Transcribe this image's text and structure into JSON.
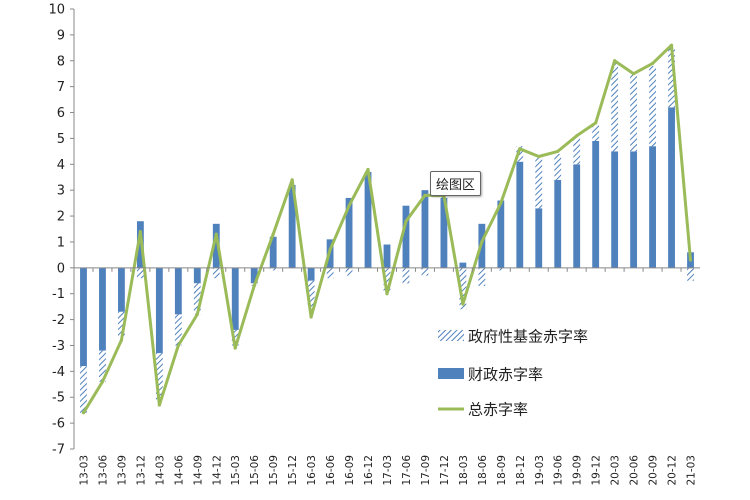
{
  "chart_data": {
    "type": "bar",
    "title": "",
    "xlabel": "",
    "ylabel": "",
    "ylim": [
      -7,
      10
    ],
    "yticks": [
      -7,
      -6,
      -5,
      -4,
      -3,
      -2,
      -1,
      0,
      1,
      2,
      3,
      4,
      5,
      6,
      7,
      8,
      9,
      10
    ],
    "grid": false,
    "legend_position": "lower-right",
    "categories": [
      "13-03",
      "13-06",
      "13-09",
      "13-12",
      "14-03",
      "14-06",
      "14-09",
      "14-12",
      "15-03",
      "15-06",
      "15-09",
      "15-12",
      "16-03",
      "16-06",
      "16-09",
      "16-12",
      "17-03",
      "17-06",
      "17-09",
      "17-12",
      "18-03",
      "18-06",
      "18-09",
      "18-12",
      "19-03",
      "19-06",
      "19-09",
      "19-12",
      "20-03",
      "20-06",
      "20-09",
      "20-12",
      "21-03"
    ],
    "series": [
      {
        "name": "政府性基金赤字率",
        "kind": "stacked-bar-hatched",
        "color": "#4f81bd",
        "values": [
          -1.8,
          -1.2,
          -1.0,
          -0.4,
          -1.9,
          -1.2,
          -1.2,
          -0.4,
          -0.6,
          -0.1,
          -0.1,
          0.1,
          -1.0,
          -0.4,
          -0.3,
          0.1,
          -1.0,
          -0.6,
          -0.3,
          0.1,
          -1.6,
          -0.7,
          -0.1,
          0.6,
          2.0,
          1.0,
          1.1,
          0.6,
          3.4,
          3.0,
          3.1,
          2.3,
          -0.5
        ]
      },
      {
        "name": "财政赤字率",
        "kind": "bar",
        "color": "#4f81bd",
        "values": [
          -3.8,
          -3.2,
          -1.7,
          1.8,
          -3.3,
          -1.8,
          -0.6,
          1.7,
          -2.4,
          -0.6,
          1.2,
          3.2,
          -0.5,
          1.1,
          2.7,
          3.7,
          0.9,
          2.4,
          3.0,
          2.7,
          0.2,
          1.7,
          2.6,
          4.1,
          2.3,
          3.4,
          4.0,
          4.9,
          4.5,
          4.5,
          4.7,
          6.2,
          0.6
        ]
      },
      {
        "name": "总赤字率",
        "kind": "line",
        "color": "#9bbb59",
        "values": [
          -5.6,
          -4.4,
          -2.8,
          1.4,
          -5.3,
          -3.0,
          -1.8,
          1.3,
          -3.1,
          -0.7,
          1.3,
          3.4,
          -1.9,
          0.7,
          2.4,
          3.8,
          -1.0,
          1.8,
          2.8,
          2.8,
          -1.4,
          1.0,
          2.5,
          4.6,
          4.3,
          4.5,
          5.1,
          5.6,
          8.0,
          7.5,
          7.9,
          8.6,
          0.3
        ]
      }
    ]
  },
  "tooltip": {
    "label": "绘图区"
  },
  "colors": {
    "bar": "#4f81bd",
    "line": "#9bbb59",
    "axis": "#888888",
    "text": "#222222"
  }
}
